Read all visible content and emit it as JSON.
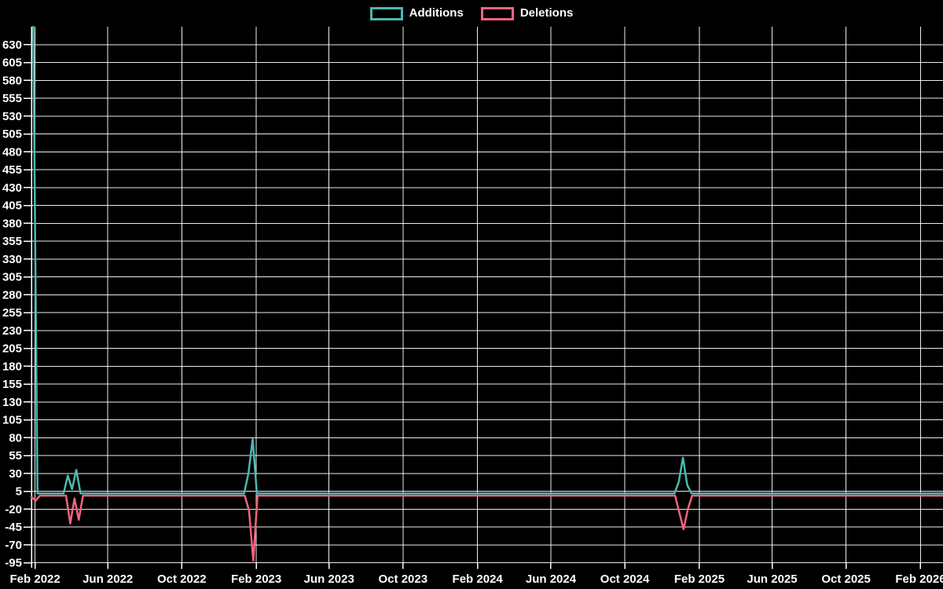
{
  "app": {
    "background": "#000000",
    "text_color": "#ffffff"
  },
  "legend": {
    "items": [
      {
        "label": "Additions"
      },
      {
        "label": "Deletions"
      }
    ]
  },
  "chart_data": {
    "type": "line",
    "title": "",
    "legend_position": "top-center",
    "grid": true,
    "background": "#000000",
    "grid_color": "#ffffff",
    "axis_text_color": "#ffffff",
    "ylabel": "",
    "xlabel": "",
    "ylim": [
      -102,
      655
    ],
    "y_tick_step": 25,
    "y_ticks": [
      630,
      605,
      580,
      555,
      530,
      505,
      480,
      455,
      430,
      405,
      380,
      355,
      330,
      305,
      280,
      255,
      230,
      205,
      180,
      155,
      130,
      105,
      80,
      55,
      30,
      5,
      -20,
      -45,
      -70,
      -95
    ],
    "x_domain": [
      "2022-01-26",
      "2026-03-10"
    ],
    "x_ticks": [
      {
        "date": "2022-02-01",
        "label": "Feb 2022"
      },
      {
        "date": "2022-06-01",
        "label": "Jun 2022"
      },
      {
        "date": "2022-10-01",
        "label": "Oct 2022"
      },
      {
        "date": "2023-02-01",
        "label": "Feb 2023"
      },
      {
        "date": "2023-06-01",
        "label": "Jun 2023"
      },
      {
        "date": "2023-10-01",
        "label": "Oct 2023"
      },
      {
        "date": "2024-02-01",
        "label": "Feb 2024"
      },
      {
        "date": "2024-06-01",
        "label": "Jun 2024"
      },
      {
        "date": "2024-10-01",
        "label": "Oct 2024"
      },
      {
        "date": "2025-02-01",
        "label": "Feb 2025"
      },
      {
        "date": "2025-06-01",
        "label": "Jun 2025"
      },
      {
        "date": "2025-10-01",
        "label": "Oct 2025"
      },
      {
        "date": "2026-02-01",
        "label": "Feb 2026"
      }
    ],
    "series": [
      {
        "name": "Deletions",
        "color": "#f4637f",
        "points": [
          [
            "2022-01-26",
            -3
          ],
          [
            "2022-02-02",
            -8
          ],
          [
            "2022-02-09",
            -1
          ],
          [
            "2022-03-24",
            -1
          ],
          [
            "2022-03-31",
            -40
          ],
          [
            "2022-04-07",
            -5
          ],
          [
            "2022-04-14",
            -35
          ],
          [
            "2022-04-21",
            -1
          ],
          [
            "2023-01-13",
            -1
          ],
          [
            "2023-01-20",
            -22
          ],
          [
            "2023-01-27",
            -92
          ],
          [
            "2023-02-03",
            -1
          ],
          [
            "2024-12-23",
            -1
          ],
          [
            "2024-12-30",
            -25
          ],
          [
            "2025-01-06",
            -48
          ],
          [
            "2025-01-13",
            -20
          ],
          [
            "2025-01-20",
            -1
          ],
          [
            "2026-03-10",
            -1
          ]
        ]
      },
      {
        "name": "Additions",
        "color": "#4cb8b2",
        "points": [
          [
            "2022-01-29",
            655
          ],
          [
            "2022-02-05",
            2
          ],
          [
            "2022-03-20",
            2
          ],
          [
            "2022-03-27",
            27
          ],
          [
            "2022-04-03",
            8
          ],
          [
            "2022-04-10",
            35
          ],
          [
            "2022-04-17",
            2
          ],
          [
            "2023-01-12",
            2
          ],
          [
            "2023-01-19",
            30
          ],
          [
            "2023-01-26",
            78
          ],
          [
            "2023-02-02",
            2
          ],
          [
            "2024-12-22",
            2
          ],
          [
            "2024-12-29",
            18
          ],
          [
            "2025-01-05",
            52
          ],
          [
            "2025-01-12",
            14
          ],
          [
            "2025-01-19",
            2
          ],
          [
            "2026-03-10",
            2
          ]
        ]
      }
    ]
  }
}
